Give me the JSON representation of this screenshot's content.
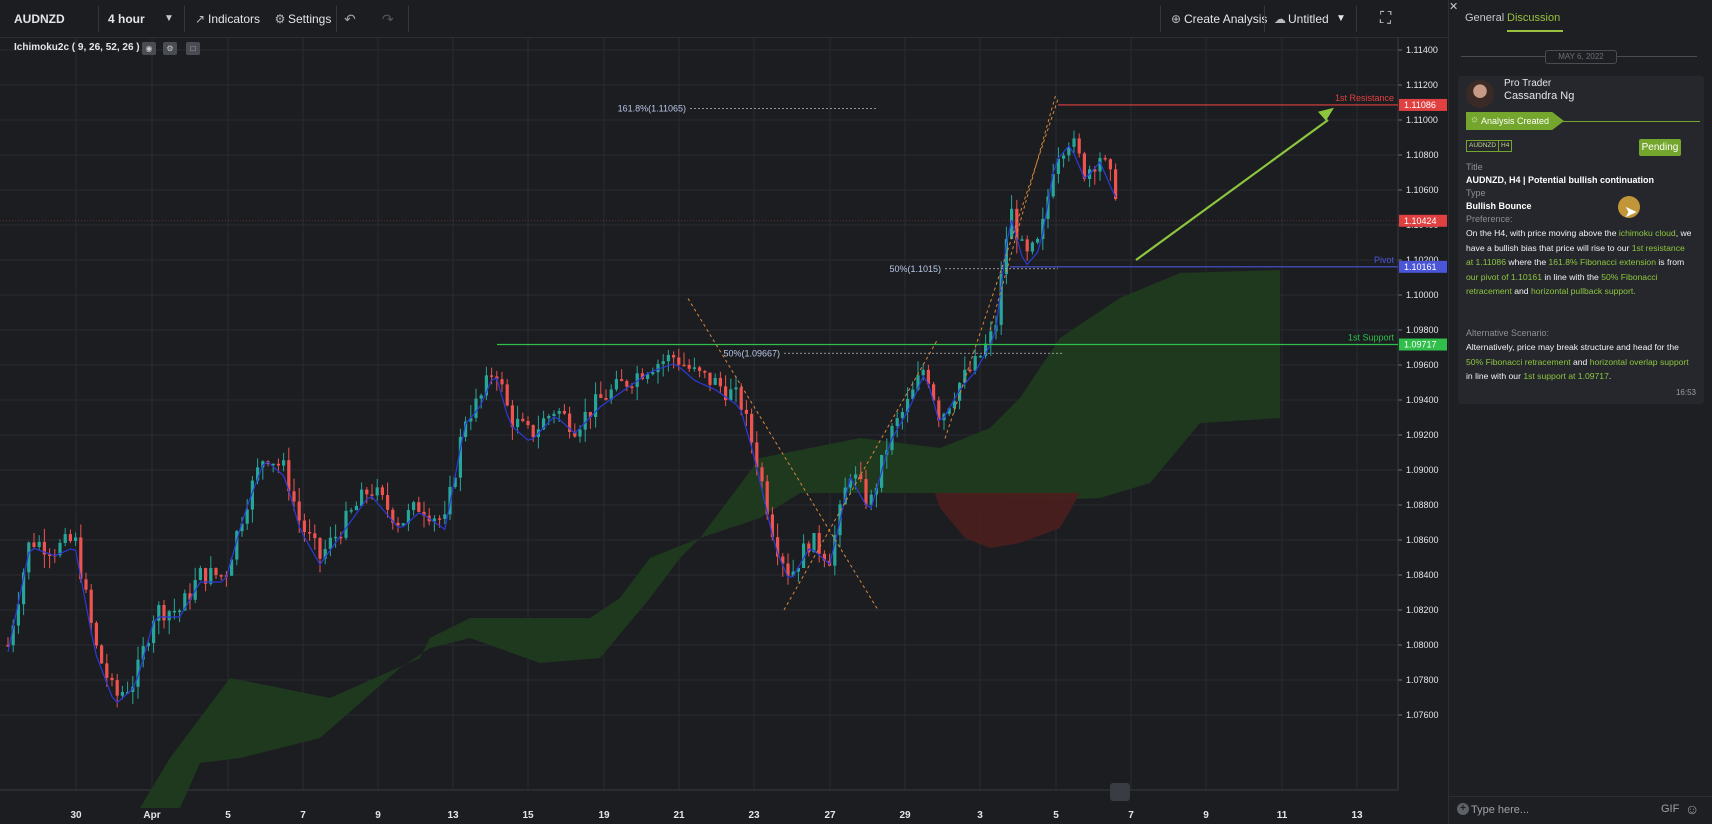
{
  "toolbar": {
    "symbol": "AUDNZD",
    "timeframe": "4 hour",
    "indicators_label": "Indicators",
    "settings_label": "Settings",
    "create_analysis_label": "Create Analysis",
    "layout_name": "Untitled"
  },
  "chart": {
    "indicator_label": "Ichimoku2c ( 9, 26, 52, 26 )",
    "price_axis_labels": [
      "1.11400",
      "1.11200",
      "1.11000",
      "1.10800",
      "1.10600",
      "1.10400",
      "1.10200",
      "1.10000",
      "1.09800",
      "1.09600",
      "1.09400",
      "1.09200",
      "1.09000",
      "1.08800",
      "1.08600",
      "1.08400",
      "1.08200",
      "1.08000",
      "1.07800",
      "1.07600"
    ],
    "date_axis_labels": [
      "30",
      "Apr",
      "5",
      "7",
      "9",
      "13",
      "15",
      "19",
      "21",
      "23",
      "27",
      "29",
      "3",
      "5",
      "7",
      "9",
      "11",
      "13"
    ],
    "levels": {
      "resistance": {
        "name": "1st Resistance",
        "price": "1.11086",
        "color": "#e04040"
      },
      "current": {
        "price": "1.10424",
        "color": "#e04040"
      },
      "pivot": {
        "name": "Pivot",
        "price": "1.10161",
        "color": "#4a55d8"
      },
      "support": {
        "name": "1st Support",
        "price": "1.09717",
        "color": "#2fbf4a"
      }
    },
    "fib_labels": {
      "ext_1618": "161.8%(1.11065)",
      "ret_50_a": "50%(1.1015)",
      "ret_50_b": "50%(1.09667)"
    },
    "colors": {
      "bull": "#26a69a",
      "bear": "#ef5350",
      "kijun": "#2b3bd6",
      "cloud_bull": "#1f3b1f",
      "cloud_bear": "#4a1f1f",
      "arrow": "#8cc63f",
      "fib": "#d9883a"
    }
  },
  "panel": {
    "tabs": {
      "general": "General",
      "discussion": "Discussion"
    },
    "date_badge": "MAY 6, 2022",
    "author_role": "Pro Trader",
    "author_name": "Cassandra Ng",
    "status": "Analysis Created",
    "tags": [
      "AUDNZD",
      "H4"
    ],
    "pending_label": "Pending",
    "title_label": "Title",
    "title_value": "AUDNZD, H4 | Potential bullish continuation",
    "type_label": "Type",
    "type_value": "Bullish Bounce",
    "preference_label": "Preference:",
    "preference_parts": [
      {
        "t": "On the H4, with price moving above the ",
        "h": false
      },
      {
        "t": "ichimoku cloud",
        "h": true
      },
      {
        "t": ", we have a bullish bias that price will rise to our ",
        "h": false
      },
      {
        "t": "1st resistance at 1.11086",
        "h": true
      },
      {
        "t": " where the ",
        "h": false
      },
      {
        "t": "161.8% Fibonacci extension",
        "h": true
      },
      {
        "t": " is from ",
        "h": false
      },
      {
        "t": "our pivot of 1.10161",
        "h": true
      },
      {
        "t": " in line with the ",
        "h": false
      },
      {
        "t": "50% Fibonacci retracement",
        "h": true
      },
      {
        "t": " and  ",
        "h": false
      },
      {
        "t": "horizontal pullback support.",
        "h": true
      }
    ],
    "alt_label": "Alternative Scenario:",
    "alt_parts": [
      {
        "t": "Alternatively, price may break  structure and head for the ",
        "h": false
      },
      {
        "t": "50% Fibonacci retracement",
        "h": true
      },
      {
        "t": " and ",
        "h": false
      },
      {
        "t": "horizontal overlap support",
        "h": true
      },
      {
        "t": " in line with our ",
        "h": false
      },
      {
        "t": "1st support at 1.09717",
        "h": true
      },
      {
        "t": ".",
        "h": false
      }
    ],
    "comment_time": "16:53",
    "input_placeholder": "Type here...",
    "gif_label": "GIF"
  }
}
